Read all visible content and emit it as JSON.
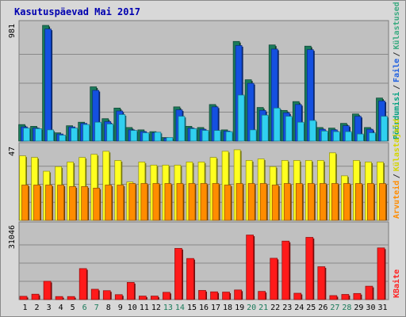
{
  "title": "Kasutuspäevad Mai 2017",
  "chart_data": [
    {
      "type": "bar",
      "panel": "top",
      "categories": [
        "1",
        "2",
        "3",
        "4",
        "5",
        "6",
        "7",
        "8",
        "9",
        "10",
        "11",
        "12",
        "13",
        "14",
        "15",
        "16",
        "17",
        "18",
        "19",
        "20",
        "21",
        "22",
        "23",
        "24",
        "25",
        "26",
        "27",
        "28",
        "29",
        "30",
        "31"
      ],
      "weekend_categories": [
        "6",
        "7",
        "13",
        "14",
        "20",
        "21",
        "27",
        "28"
      ],
      "y_tick_label": "981",
      "ylim": [
        0,
        981
      ],
      "series": [
        {
          "name": "Külastused",
          "color": "#1a7a5a",
          "values": [
            140,
            125,
            981,
            70,
            130,
            160,
            460,
            190,
            280,
            115,
            95,
            80,
            30,
            290,
            125,
            115,
            310,
            95,
            845,
            520,
            285,
            815,
            260,
            335,
            805,
            115,
            110,
            150,
            230,
            115,
            365
          ]
        },
        {
          "name": "Faile",
          "color": "#1450e0",
          "values": [
            120,
            110,
            950,
            60,
            120,
            150,
            430,
            165,
            255,
            95,
            80,
            70,
            25,
            265,
            110,
            100,
            290,
            85,
            810,
            490,
            260,
            780,
            240,
            310,
            775,
            100,
            95,
            130,
            210,
            100,
            340
          ]
        },
        {
          "name": "Pöördumisi",
          "color": "#30d0f0",
          "values": [
            110,
            105,
            95,
            50,
            110,
            140,
            160,
            145,
            225,
            90,
            70,
            75,
            30,
            210,
            105,
            90,
            90,
            80,
            390,
            95,
            220,
            280,
            210,
            160,
            175,
            85,
            80,
            80,
            60,
            70,
            210
          ]
        }
      ],
      "right_labels": [
        {
          "text": "Pöördumisi",
          "color": "#00a080"
        },
        {
          "text": "Faile",
          "color": "#2060e0"
        },
        {
          "text": "Külastused",
          "color": "#3aaa80"
        }
      ]
    },
    {
      "type": "bar",
      "panel": "middle",
      "categories": [
        "1",
        "2",
        "3",
        "4",
        "5",
        "6",
        "7",
        "8",
        "9",
        "10",
        "11",
        "12",
        "13",
        "14",
        "15",
        "16",
        "17",
        "18",
        "19",
        "20",
        "21",
        "22",
        "23",
        "24",
        "25",
        "26",
        "27",
        "28",
        "29",
        "30",
        "31"
      ],
      "y_tick_label": "47",
      "ylim": [
        0,
        47
      ],
      "series": [
        {
          "name": "Külastajaid",
          "color": "#ffff20",
          "values": [
            42,
            41,
            32,
            35,
            38,
            41,
            43,
            45,
            39,
            25,
            38,
            36,
            36,
            36,
            38,
            38,
            41,
            45,
            46,
            39,
            40,
            35,
            39,
            39,
            39,
            39,
            44,
            29,
            39,
            38,
            38
          ]
        },
        {
          "name": "Arvuteid",
          "color": "#ff8c00",
          "values": [
            23,
            23,
            23,
            23,
            22,
            22,
            21,
            23,
            23,
            24,
            24,
            24,
            24,
            24,
            24,
            24,
            24,
            23,
            24,
            24,
            24,
            23,
            24,
            24,
            24,
            24,
            24,
            24,
            24,
            24,
            24
          ]
        }
      ],
      "right_labels": [
        {
          "text": "Arvuteid",
          "color": "#ff8c00"
        },
        {
          "text": "Külastajaid",
          "color": "#d4d400"
        }
      ]
    },
    {
      "type": "bar",
      "panel": "bottom",
      "categories": [
        "1",
        "2",
        "3",
        "4",
        "5",
        "6",
        "7",
        "8",
        "9",
        "10",
        "11",
        "12",
        "13",
        "14",
        "15",
        "16",
        "17",
        "18",
        "19",
        "20",
        "21",
        "22",
        "23",
        "24",
        "25",
        "26",
        "27",
        "28",
        "29",
        "30",
        "31"
      ],
      "y_tick_label": "31046",
      "ylim": [
        0,
        31046
      ],
      "series": [
        {
          "name": "KBaite",
          "color": "#ff1a1a",
          "values": [
            1400,
            2300,
            7800,
            1300,
            1300,
            13200,
            4400,
            3800,
            2100,
            7300,
            1500,
            1500,
            3100,
            21800,
            17500,
            3900,
            3300,
            3200,
            4100,
            27500,
            3500,
            17600,
            24900,
            2700,
            26500,
            14000,
            1700,
            2200,
            2600,
            5700,
            22000
          ]
        }
      ],
      "right_labels": [
        {
          "text": "KBaite",
          "color": "#ff2020"
        }
      ]
    }
  ]
}
